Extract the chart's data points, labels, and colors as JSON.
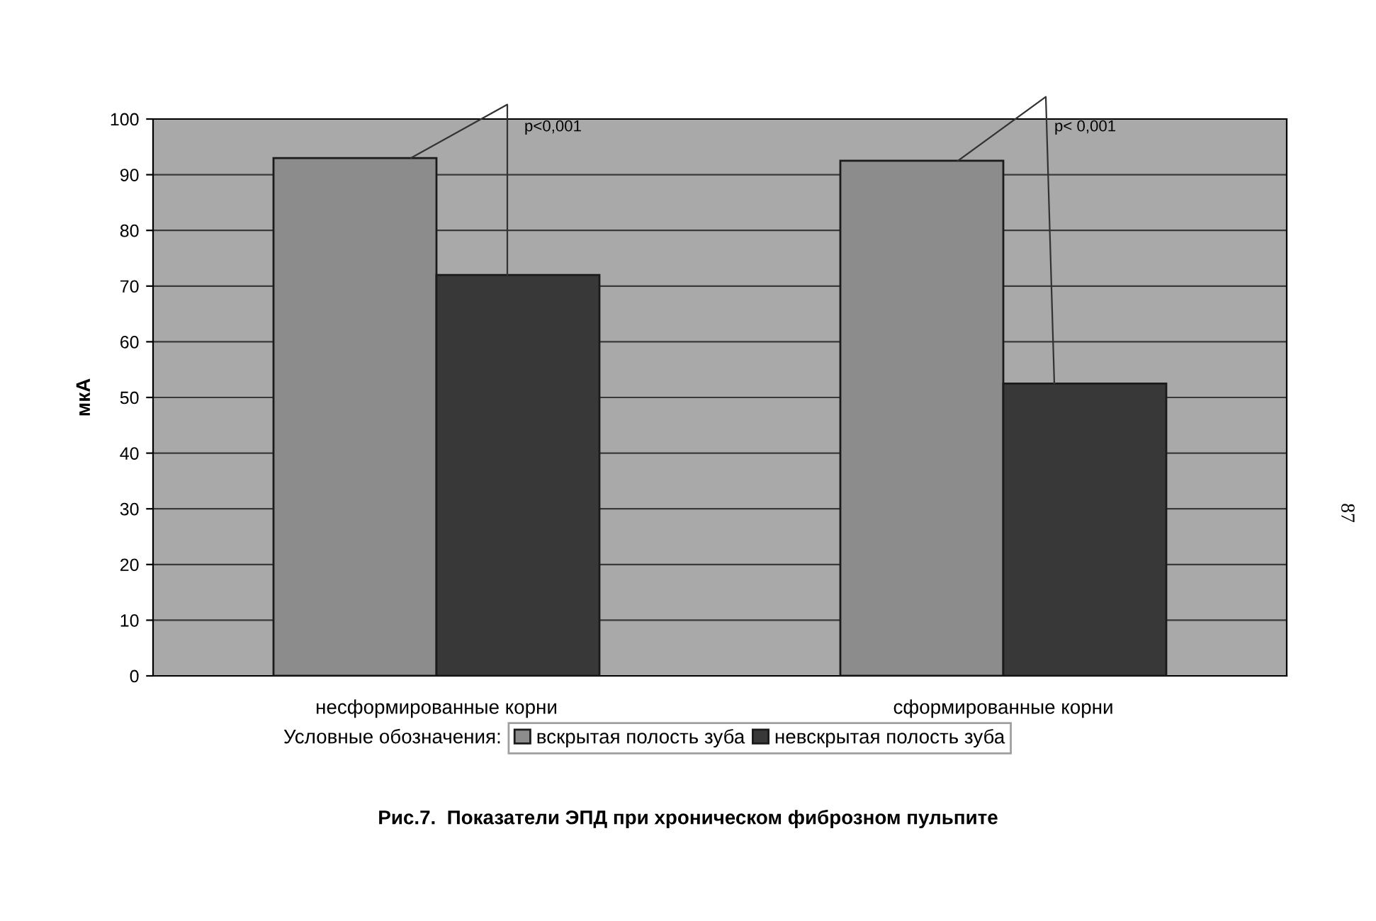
{
  "chart_data": {
    "type": "bar",
    "title": "Рис.7.  Показатели ЭПД при хроническом фиброзном пульпите",
    "ylabel": "мкА",
    "categories": [
      "несформированные корни",
      "сформированные корни"
    ],
    "series": [
      {
        "name": "вскрытая полость зуба",
        "color": "#8c8c8c",
        "values": [
          93,
          92.5
        ]
      },
      {
        "name": "невскрытая полость зуба",
        "color": "#383838",
        "values": [
          72,
          52.5
        ]
      }
    ],
    "ylim": [
      0,
      100
    ],
    "yticks": [
      0,
      10,
      20,
      30,
      40,
      50,
      60,
      70,
      80,
      90,
      100
    ],
    "grid": "y",
    "legend": "bottom",
    "legend_title": "Условные обозначения:",
    "annotations": [
      "p<0,001",
      "p< 0,001",
      "87"
    ]
  }
}
